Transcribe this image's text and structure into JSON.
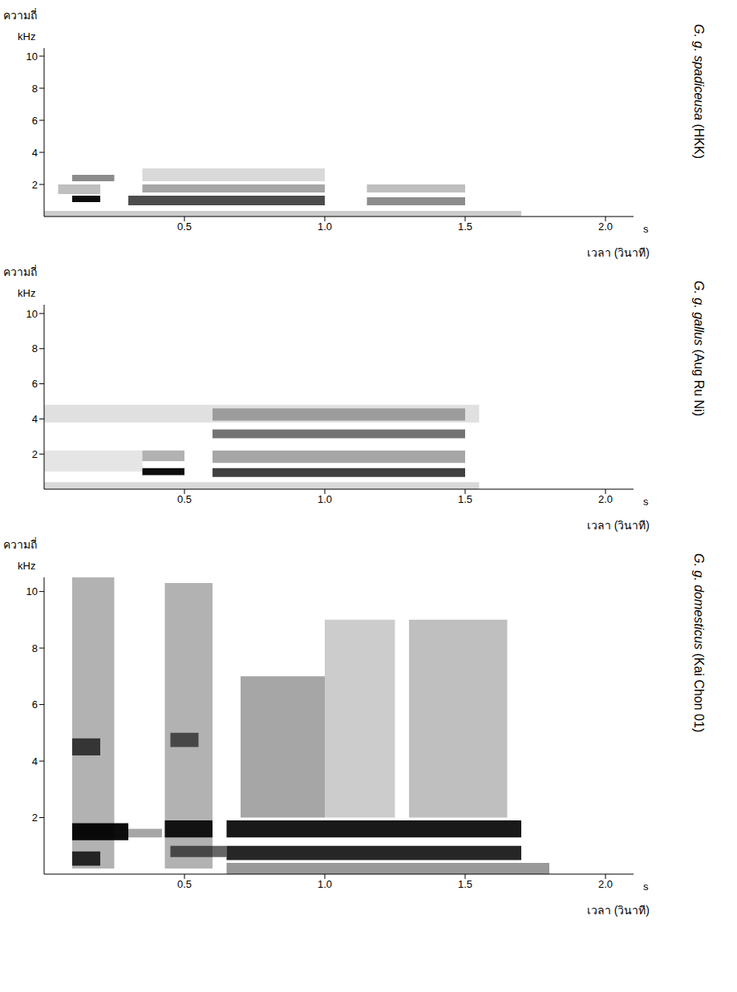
{
  "chart_data": [
    {
      "type": "spectrogram",
      "title": "G. g. spadiceusa",
      "subtitle": "(HKK)",
      "ylabel": "ความถี่",
      "y_unit": "kHz",
      "xlabel": "เวลา (วินาที)",
      "x_unit": "s",
      "color": "#000000",
      "xlim": [
        0,
        2.1
      ],
      "xticks": [
        0.5,
        {
          "value": 1.0,
          "label": "1.0"
        },
        1.5,
        {
          "value": 2.0,
          "label": "2.0"
        }
      ],
      "ylim": [
        0,
        10.5
      ],
      "yticks": [
        2,
        4,
        6,
        8,
        10
      ],
      "grid": false,
      "energy_bands": [
        {
          "t": [
            0.0,
            1.7
          ],
          "f": [
            0.0,
            0.35
          ],
          "level": 0.2
        },
        {
          "t": [
            0.05,
            0.2
          ],
          "f": [
            1.4,
            2.0
          ],
          "level": 0.25
        },
        {
          "t": [
            0.1,
            0.25
          ],
          "f": [
            2.2,
            2.6
          ],
          "level": 0.45
        },
        {
          "t": [
            0.1,
            0.2
          ],
          "f": [
            0.9,
            1.3
          ],
          "level": 0.95
        },
        {
          "t": [
            0.35,
            1.0
          ],
          "f": [
            2.2,
            3.0
          ],
          "level": 0.15
        },
        {
          "t": [
            0.35,
            1.0
          ],
          "f": [
            1.5,
            2.0
          ],
          "level": 0.35
        },
        {
          "t": [
            0.3,
            1.0
          ],
          "f": [
            0.7,
            1.3
          ],
          "level": 0.7
        },
        {
          "t": [
            1.15,
            1.5
          ],
          "f": [
            1.5,
            2.0
          ],
          "level": 0.25
        },
        {
          "t": [
            1.15,
            1.5
          ],
          "f": [
            0.7,
            1.2
          ],
          "level": 0.45
        }
      ]
    },
    {
      "type": "spectrogram",
      "title": "G. g. gallus",
      "subtitle": "(Aug Ru Ni)",
      "ylabel": "ความถี่",
      "y_unit": "kHz",
      "xlabel": "เวลา (วินาที)",
      "x_unit": "s",
      "color": "#000000",
      "xlim": [
        0,
        2.1
      ],
      "xticks": [
        0.5,
        {
          "value": 1.0,
          "label": "1.0"
        },
        1.5,
        {
          "value": 2.0,
          "label": "2.0"
        }
      ],
      "ylim": [
        0,
        10.5
      ],
      "yticks": [
        2,
        4,
        6,
        8,
        10
      ],
      "grid": false,
      "energy_bands": [
        {
          "t": [
            0.0,
            1.55
          ],
          "f": [
            0.0,
            0.4
          ],
          "level": 0.15
        },
        {
          "t": [
            0.0,
            1.55
          ],
          "f": [
            3.8,
            4.8
          ],
          "level": 0.12
        },
        {
          "t": [
            0.0,
            0.35
          ],
          "f": [
            1.0,
            2.2
          ],
          "level": 0.1
        },
        {
          "t": [
            0.35,
            0.5
          ],
          "f": [
            1.6,
            2.2
          ],
          "level": 0.3
        },
        {
          "t": [
            0.35,
            0.5
          ],
          "f": [
            0.8,
            1.2
          ],
          "level": 0.95
        },
        {
          "t": [
            0.6,
            1.5
          ],
          "f": [
            1.5,
            2.2
          ],
          "level": 0.35
        },
        {
          "t": [
            0.6,
            1.5
          ],
          "f": [
            2.9,
            3.4
          ],
          "level": 0.55
        },
        {
          "t": [
            0.6,
            1.5
          ],
          "f": [
            3.9,
            4.6
          ],
          "level": 0.3
        },
        {
          "t": [
            0.6,
            1.5
          ],
          "f": [
            0.7,
            1.2
          ],
          "level": 0.75
        }
      ]
    },
    {
      "type": "spectrogram",
      "title": "G. g. domesticus",
      "subtitle": "(Kai Chon 01)",
      "ylabel": "ความถี่",
      "y_unit": "kHz",
      "xlabel": "เวลา (วินาที)",
      "x_unit": "s",
      "color": "#000000",
      "xlim": [
        0,
        2.1
      ],
      "xticks": [
        0.5,
        {
          "value": 1.0,
          "label": "1.0"
        },
        1.5,
        {
          "value": 2.0,
          "label": "2.0"
        }
      ],
      "ylim": [
        0,
        10.5
      ],
      "yticks": [
        2,
        4,
        6,
        8,
        10
      ],
      "grid": false,
      "energy_bands": [
        {
          "t": [
            0.65,
            1.8
          ],
          "f": [
            0.0,
            0.4
          ],
          "level": 0.4
        },
        {
          "t": [
            0.1,
            0.25
          ],
          "f": [
            0.2,
            10.5
          ],
          "level": 0.3
        },
        {
          "t": [
            0.1,
            0.3
          ],
          "f": [
            1.2,
            1.8
          ],
          "level": 0.95
        },
        {
          "t": [
            0.1,
            0.2
          ],
          "f": [
            4.2,
            4.8
          ],
          "level": 0.7
        },
        {
          "t": [
            0.1,
            0.2
          ],
          "f": [
            0.3,
            0.8
          ],
          "level": 0.8
        },
        {
          "t": [
            0.3,
            0.42
          ],
          "f": [
            1.3,
            1.6
          ],
          "level": 0.35
        },
        {
          "t": [
            0.43,
            0.6
          ],
          "f": [
            0.2,
            10.3
          ],
          "level": 0.3
        },
        {
          "t": [
            0.43,
            0.6
          ],
          "f": [
            1.3,
            1.9
          ],
          "level": 0.9
        },
        {
          "t": [
            0.45,
            0.55
          ],
          "f": [
            4.5,
            5.0
          ],
          "level": 0.6
        },
        {
          "t": [
            0.45,
            0.65
          ],
          "f": [
            0.6,
            1.0
          ],
          "level": 0.6
        },
        {
          "t": [
            0.7,
            1.0
          ],
          "f": [
            2.0,
            7.0
          ],
          "level": 0.35
        },
        {
          "t": [
            1.0,
            1.25
          ],
          "f": [
            2.0,
            9.0
          ],
          "level": 0.2
        },
        {
          "t": [
            1.3,
            1.65
          ],
          "f": [
            2.0,
            9.0
          ],
          "level": 0.25
        },
        {
          "t": [
            0.65,
            1.7
          ],
          "f": [
            1.3,
            1.9
          ],
          "level": 0.9
        },
        {
          "t": [
            0.65,
            1.7
          ],
          "f": [
            0.5,
            1.0
          ],
          "level": 0.85
        }
      ]
    }
  ]
}
